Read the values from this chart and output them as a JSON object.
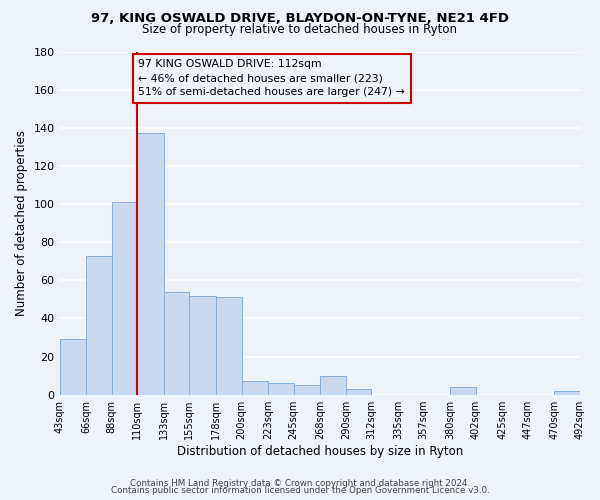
{
  "title": "97, KING OSWALD DRIVE, BLAYDON-ON-TYNE, NE21 4FD",
  "subtitle": "Size of property relative to detached houses in Ryton",
  "xlabel": "Distribution of detached houses by size in Ryton",
  "ylabel": "Number of detached properties",
  "footer_line1": "Contains HM Land Registry data © Crown copyright and database right 2024.",
  "footer_line2": "Contains public sector information licensed under the Open Government Licence v3.0.",
  "annotation_line1": "97 KING OSWALD DRIVE: 112sqm",
  "annotation_line2": "← 46% of detached houses are smaller (223)",
  "annotation_line3": "51% of semi-detached houses are larger (247) →",
  "bar_color": "#c8d8ee",
  "bar_edge_color": "#8ab0d8",
  "bar_left_edges": [
    43,
    66,
    88,
    110,
    133,
    155,
    178,
    200,
    223,
    245,
    268,
    290,
    312,
    335,
    357,
    380,
    402,
    425,
    447,
    470
  ],
  "bar_widths": [
    23,
    22,
    22,
    23,
    22,
    23,
    22,
    23,
    22,
    23,
    22,
    22,
    23,
    22,
    23,
    22,
    23,
    22,
    23,
    22
  ],
  "bar_heights": [
    29,
    73,
    101,
    137,
    54,
    52,
    51,
    7,
    6,
    5,
    10,
    3,
    0,
    0,
    0,
    4,
    0,
    0,
    0,
    2
  ],
  "tick_labels": [
    "43sqm",
    "66sqm",
    "88sqm",
    "110sqm",
    "133sqm",
    "155sqm",
    "178sqm",
    "200sqm",
    "223sqm",
    "245sqm",
    "268sqm",
    "290sqm",
    "312sqm",
    "335sqm",
    "357sqm",
    "380sqm",
    "402sqm",
    "425sqm",
    "447sqm",
    "470sqm",
    "492sqm"
  ],
  "ylim": [
    0,
    180
  ],
  "yticks": [
    0,
    20,
    40,
    60,
    80,
    100,
    120,
    140,
    160,
    180
  ],
  "vline_x": 110,
  "vline_color": "#cc0000",
  "bg_color": "#eef2f9",
  "grid_color": "#ffffff",
  "annotation_box_color": "#cc0000"
}
